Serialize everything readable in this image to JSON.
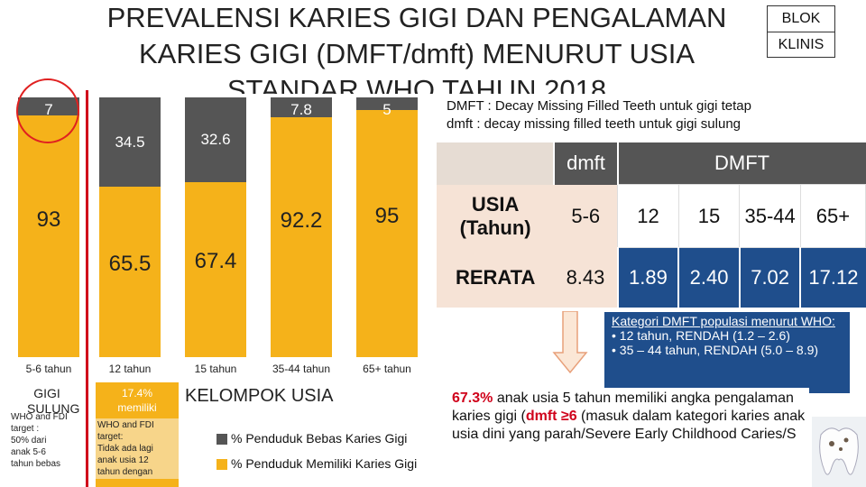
{
  "title": "PREVALENSI KARIES GIGI DAN PENGALAMAN KARIES GIGI (DMFT/dmft) MENURUT USIA STANDAR WHO TAHUN 2018",
  "blok": [
    "BLOK",
    "KLINIS"
  ],
  "chart_data": {
    "type": "bar",
    "stacked": true,
    "categories": [
      "5-6 tahun",
      "12 tahun",
      "15 tahun",
      "35-44 tahun",
      "65+ tahun"
    ],
    "series": [
      {
        "name": "% Penduduk Bebas Karies Gigi",
        "values": [
          7,
          34.5,
          32.6,
          7.8,
          5
        ],
        "color": "#555555"
      },
      {
        "name": "% Penduduk Memiliki Karies Gigi",
        "values": [
          93,
          65.5,
          67.4,
          92.2,
          95
        ],
        "color": "#f5b21a"
      }
    ],
    "value_labels": {
      "top": [
        "7",
        "34.5",
        "32.6",
        "7.8",
        "5"
      ],
      "bottom": [
        "93",
        "65.5",
        "67.4",
        "92.2",
        "95"
      ]
    },
    "xlabel": "KELOMPOK USIA",
    "ylim": [
      0,
      100
    ]
  },
  "notes": {
    "gigi_sulung": "GIGI SULUNG",
    "who5": [
      "WHO and FDI",
      "target :",
      "50% dari",
      "anak  5-6",
      "tahun bebas"
    ],
    "pct17": [
      "17.4%",
      "memiliki"
    ],
    "who12": [
      "WHO and FDI",
      "target:",
      "Tidak ada lagi",
      "anak usia 12",
      "tahun dengan"
    ]
  },
  "dmft_definition": [
    "DMFT : Decay Missing Filled Teeth untuk gigi tetap",
    "dmft   : decay missing filled teeth untuk gigi sulung"
  ],
  "table": {
    "head_dmft": "dmft",
    "head_DMFT": "DMFT",
    "usia_label": "USIA (Tahun)",
    "ages": [
      "5-6",
      "12",
      "15",
      "35-44",
      "65+"
    ],
    "rerata_label": "RERATA",
    "rerata": [
      "8.43",
      "1.89",
      "2.40",
      "7.02",
      "17.12"
    ]
  },
  "kategori": {
    "title": "Kategori DMFT  populasi menurut WHO:",
    "items": [
      "12 tahun, RENDAH (1.2 – 2.6)",
      "35 – 44 tahun, RENDAH (5.0 – 8.9)"
    ]
  },
  "callout": {
    "pct": "67.3%",
    "text1": " anak usia 5 tahun memiliki angka pengalaman karies gigi (",
    "red1": "dmft",
    "red2": " ≥6",
    "text2": " (masuk dalam kategori karies anak usia dini yang parah/Severe Early Childhood Caries/S"
  }
}
